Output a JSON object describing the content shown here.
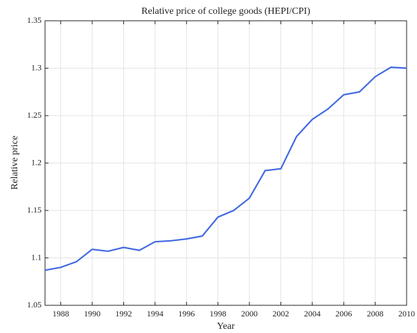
{
  "chart_data": {
    "type": "line",
    "title": "Relative price of college goods (HEPI/CPI)",
    "xlabel": "Year",
    "ylabel": "Relative price",
    "x": [
      1987,
      1988,
      1989,
      1990,
      1991,
      1992,
      1993,
      1994,
      1995,
      1996,
      1997,
      1998,
      1999,
      2000,
      2001,
      2002,
      2003,
      2004,
      2005,
      2006,
      2007,
      2008,
      2009,
      2010
    ],
    "series": [
      {
        "name": "HEPI/CPI",
        "color": "#4169e1",
        "values": [
          1.087,
          1.09,
          1.096,
          1.109,
          1.107,
          1.111,
          1.108,
          1.117,
          1.118,
          1.12,
          1.123,
          1.143,
          1.15,
          1.163,
          1.192,
          1.194,
          1.228,
          1.246,
          1.257,
          1.272,
          1.275,
          1.291,
          1.301,
          1.3
        ]
      }
    ],
    "xlim": [
      1987,
      2010
    ],
    "xticks": [
      1988,
      1990,
      1992,
      1994,
      1996,
      1998,
      2000,
      2002,
      2004,
      2006,
      2008,
      2010
    ],
    "ylim": [
      1.05,
      1.35
    ],
    "yticks": [
      1.05,
      1.1,
      1.15,
      1.2,
      1.25,
      1.3,
      1.35
    ],
    "grid": true
  }
}
